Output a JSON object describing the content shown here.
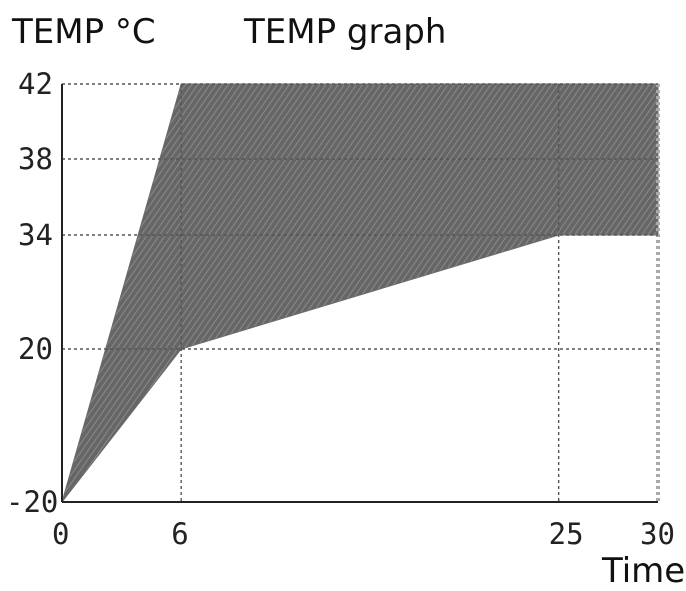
{
  "chart_data": {
    "type": "area",
    "title": "TEMP graph",
    "ylabel": "TEMP °C",
    "xlabel": "Time",
    "x_ticks": [
      0,
      6,
      25,
      30
    ],
    "y_ticks": [
      -20,
      20,
      34,
      38,
      42
    ],
    "xlim": [
      0,
      30
    ],
    "y_scale": "piecewise (ticks unevenly spaced)",
    "grid": true,
    "grid_style": "dashed",
    "band": {
      "upper": [
        {
          "x": 0,
          "y": -20
        },
        {
          "x": 6,
          "y": 42
        },
        {
          "x": 30,
          "y": 42
        }
      ],
      "lower": [
        {
          "x": 0,
          "y": -20
        },
        {
          "x": 6,
          "y": 20
        },
        {
          "x": 25,
          "y": 34
        },
        {
          "x": 30,
          "y": 34
        }
      ]
    },
    "fill_color": "#6b6b6b",
    "hatch_color": "#8a8a8a",
    "grid_color": "#555555",
    "axis_color": "#222222"
  }
}
